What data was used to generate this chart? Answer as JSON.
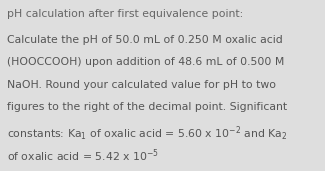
{
  "title": "pH calculation after first equivalence point:",
  "title_fontsize": 7.8,
  "title_color": "#666666",
  "body_fontsize": 7.8,
  "body_color": "#555555",
  "background_color": "#dedede",
  "line1": "Calculate the pH of 50.0 mL of 0.250 M oxalic acid",
  "line2": "(HOOCCOOH) upon addition of 48.6 mL of 0.500 M",
  "line3": "NaOH. Round your calculated value for pH to two",
  "line4": "figures to the right of the decimal point. Significant",
  "line5": "constants: Ka$_1$ of oxalic acid = 5.60 x 10$^{-2}$ and Ka$_2$",
  "line6": "of oxalic acid = 5.42 x 10$^{-5}$"
}
